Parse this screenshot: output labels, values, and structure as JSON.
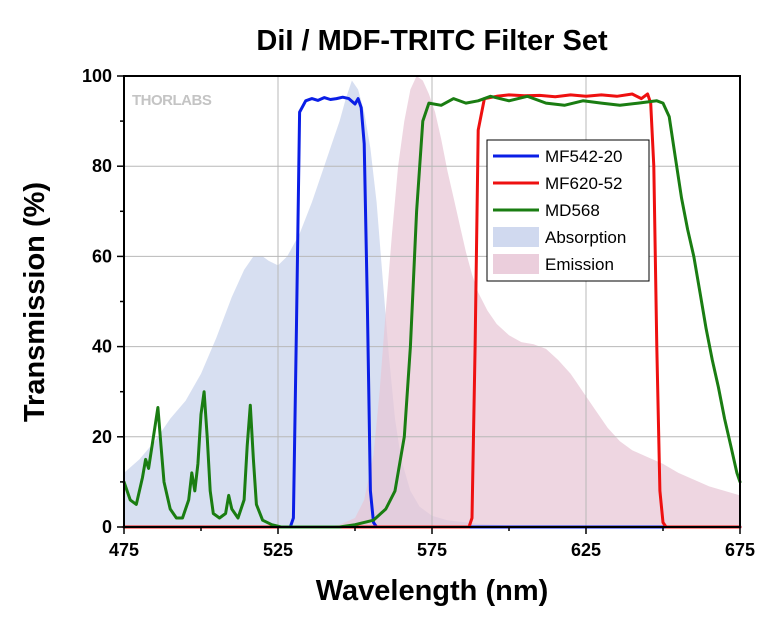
{
  "chart_data": {
    "type": "line",
    "title": "DiI / MDF-TRITC Filter Set",
    "xlabel": "Wavelength (nm)",
    "ylabel": "Transmission (%)",
    "xlim": [
      475,
      675
    ],
    "ylim": [
      0,
      100
    ],
    "x_ticks": [
      475,
      525,
      575,
      625,
      675
    ],
    "y_ticks": [
      0,
      20,
      40,
      60,
      80,
      100
    ],
    "grid": true,
    "legend_position": "top-right",
    "watermark": "THORLABS",
    "series": [
      {
        "name": "MF542-20",
        "kind": "line",
        "color": "#0a1ee6",
        "points": [
          [
            475,
            0
          ],
          [
            529,
            0
          ],
          [
            530,
            2
          ],
          [
            531,
            45
          ],
          [
            532,
            92
          ],
          [
            534,
            94.5
          ],
          [
            536,
            95
          ],
          [
            538,
            94.6
          ],
          [
            540,
            95.2
          ],
          [
            542,
            94.8
          ],
          [
            544,
            95
          ],
          [
            546,
            95.3
          ],
          [
            548,
            95
          ],
          [
            550,
            93.8
          ],
          [
            551,
            95
          ],
          [
            552,
            93
          ],
          [
            553,
            85
          ],
          [
            554,
            50
          ],
          [
            555,
            8
          ],
          [
            556,
            1
          ],
          [
            557,
            0
          ],
          [
            675,
            0
          ]
        ]
      },
      {
        "name": "MF620-52",
        "kind": "line",
        "color": "#ee1010",
        "points": [
          [
            475,
            0
          ],
          [
            587,
            0
          ],
          [
            588,
            2
          ],
          [
            589,
            40
          ],
          [
            590,
            88
          ],
          [
            592,
            95
          ],
          [
            596,
            95.5
          ],
          [
            600,
            95.8
          ],
          [
            605,
            95.6
          ],
          [
            610,
            95.7
          ],
          [
            615,
            95.4
          ],
          [
            620,
            95.8
          ],
          [
            625,
            95.5
          ],
          [
            630,
            95.8
          ],
          [
            635,
            95.5
          ],
          [
            640,
            96
          ],
          [
            643,
            95
          ],
          [
            645,
            96
          ],
          [
            646,
            94
          ],
          [
            647,
            80
          ],
          [
            648,
            40
          ],
          [
            649,
            8
          ],
          [
            650,
            1
          ],
          [
            651,
            0
          ],
          [
            675,
            0
          ]
        ]
      },
      {
        "name": "MD568",
        "kind": "line",
        "color": "#1a7d12",
        "points": [
          [
            475,
            10
          ],
          [
            477,
            6
          ],
          [
            479,
            5
          ],
          [
            481,
            11
          ],
          [
            482,
            15
          ],
          [
            483,
            13
          ],
          [
            485,
            22
          ],
          [
            486,
            26.5
          ],
          [
            487,
            18
          ],
          [
            488,
            10
          ],
          [
            490,
            4
          ],
          [
            492,
            2
          ],
          [
            494,
            2
          ],
          [
            496,
            6
          ],
          [
            497,
            12
          ],
          [
            498,
            8
          ],
          [
            499,
            14
          ],
          [
            500,
            25
          ],
          [
            501,
            30
          ],
          [
            502,
            20
          ],
          [
            503,
            8
          ],
          [
            504,
            3
          ],
          [
            506,
            2
          ],
          [
            508,
            3
          ],
          [
            509,
            7
          ],
          [
            510,
            4
          ],
          [
            512,
            2
          ],
          [
            514,
            6
          ],
          [
            515,
            18
          ],
          [
            516,
            27
          ],
          [
            517,
            15
          ],
          [
            518,
            5
          ],
          [
            520,
            1.5
          ],
          [
            523,
            0.5
          ],
          [
            526,
            0
          ],
          [
            545,
            0
          ],
          [
            550,
            0.5
          ],
          [
            556,
            1.5
          ],
          [
            560,
            4
          ],
          [
            563,
            8
          ],
          [
            566,
            20
          ],
          [
            568,
            40
          ],
          [
            570,
            70
          ],
          [
            572,
            90
          ],
          [
            574,
            94
          ],
          [
            578,
            93.5
          ],
          [
            582,
            95
          ],
          [
            586,
            94
          ],
          [
            590,
            94.5
          ],
          [
            594,
            95.5
          ],
          [
            600,
            94.5
          ],
          [
            606,
            95.5
          ],
          [
            612,
            94
          ],
          [
            618,
            93.5
          ],
          [
            624,
            94.5
          ],
          [
            630,
            94
          ],
          [
            636,
            93.5
          ],
          [
            642,
            94
          ],
          [
            648,
            94.5
          ],
          [
            650,
            94
          ],
          [
            652,
            91
          ],
          [
            654,
            82
          ],
          [
            656,
            73
          ],
          [
            658,
            66
          ],
          [
            660,
            60
          ],
          [
            662,
            52
          ],
          [
            664,
            44
          ],
          [
            666,
            37
          ],
          [
            668,
            31
          ],
          [
            670,
            24
          ],
          [
            672,
            18
          ],
          [
            674,
            12
          ],
          [
            675,
            10
          ]
        ]
      },
      {
        "name": "Absorption",
        "kind": "area",
        "color": "#c8d2ec",
        "points": [
          [
            475,
            12
          ],
          [
            480,
            15
          ],
          [
            485,
            19
          ],
          [
            490,
            24
          ],
          [
            495,
            28
          ],
          [
            500,
            34
          ],
          [
            505,
            42
          ],
          [
            510,
            51
          ],
          [
            514,
            57
          ],
          [
            517,
            60
          ],
          [
            520,
            60
          ],
          [
            522,
            59
          ],
          [
            525,
            58
          ],
          [
            528,
            60
          ],
          [
            532,
            65
          ],
          [
            536,
            72
          ],
          [
            540,
            80
          ],
          [
            543,
            86
          ],
          [
            545,
            90
          ],
          [
            547,
            95
          ],
          [
            549,
            99
          ],
          [
            551,
            97
          ],
          [
            553,
            92
          ],
          [
            555,
            84
          ],
          [
            557,
            72
          ],
          [
            559,
            55
          ],
          [
            561,
            38
          ],
          [
            563,
            24
          ],
          [
            565,
            15
          ],
          [
            568,
            8
          ],
          [
            571,
            4.5
          ],
          [
            575,
            2.5
          ],
          [
            580,
            1.5
          ],
          [
            590,
            0.7
          ],
          [
            600,
            0.3
          ],
          [
            620,
            0
          ],
          [
            675,
            0
          ]
        ]
      },
      {
        "name": "Emission",
        "kind": "area",
        "color": "#e8c6d6",
        "points": [
          [
            475,
            0
          ],
          [
            540,
            0
          ],
          [
            545,
            0.5
          ],
          [
            550,
            2
          ],
          [
            553,
            6
          ],
          [
            556,
            16
          ],
          [
            558,
            30
          ],
          [
            560,
            48
          ],
          [
            562,
            65
          ],
          [
            564,
            80
          ],
          [
            566,
            90
          ],
          [
            568,
            97
          ],
          [
            570,
            100
          ],
          [
            572,
            99
          ],
          [
            574,
            96
          ],
          [
            576,
            92
          ],
          [
            578,
            86
          ],
          [
            580,
            79
          ],
          [
            582,
            73
          ],
          [
            584,
            67
          ],
          [
            586,
            61
          ],
          [
            588,
            56
          ],
          [
            590,
            52
          ],
          [
            593,
            48
          ],
          [
            596,
            45
          ],
          [
            600,
            42.5
          ],
          [
            604,
            41
          ],
          [
            608,
            40.5
          ],
          [
            612,
            39.5
          ],
          [
            616,
            37
          ],
          [
            620,
            34
          ],
          [
            624,
            30
          ],
          [
            628,
            26
          ],
          [
            632,
            22
          ],
          [
            636,
            19
          ],
          [
            640,
            17
          ],
          [
            645,
            15.5
          ],
          [
            650,
            14
          ],
          [
            655,
            12
          ],
          [
            660,
            10.5
          ],
          [
            665,
            9
          ],
          [
            670,
            8
          ],
          [
            675,
            7
          ]
        ]
      }
    ]
  }
}
